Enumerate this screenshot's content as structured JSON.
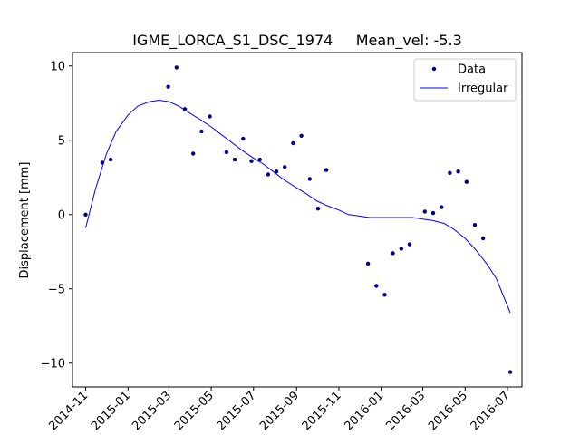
{
  "chart_data": {
    "type": "scatter",
    "title": "IGME_LORCA_S1_DSC_1974     Mean_vel: -5.3",
    "xlabel": "",
    "ylabel": "Displacement [mm]",
    "xlim": [
      "2014-10-13",
      "2016-07-22"
    ],
    "ylim": [
      -11.6,
      10.9
    ],
    "xticks": [
      "2014-11",
      "2015-01",
      "2015-03",
      "2015-05",
      "2015-07",
      "2015-09",
      "2015-11",
      "2016-01",
      "2016-03",
      "2016-05",
      "2016-07"
    ],
    "yticks": [
      10,
      5,
      0,
      -5,
      -10
    ],
    "grid": false,
    "legend": "top-right",
    "series": [
      {
        "name": "Data",
        "kind": "points",
        "color": "#00008b",
        "x": [
          "2014-11-01",
          "2014-11-25",
          "2014-12-07",
          "2015-02-28",
          "2015-03-12",
          "2015-03-24",
          "2015-04-05",
          "2015-04-17",
          "2015-04-29",
          "2015-05-23",
          "2015-06-04",
          "2015-06-16",
          "2015-06-28",
          "2015-07-10",
          "2015-07-22",
          "2015-08-03",
          "2015-08-15",
          "2015-08-27",
          "2015-09-08",
          "2015-09-20",
          "2015-10-02",
          "2015-10-14",
          "2015-12-13",
          "2015-12-25",
          "2016-01-06",
          "2016-01-18",
          "2016-01-30",
          "2016-02-11",
          "2016-03-04",
          "2016-03-16",
          "2016-03-28",
          "2016-04-09",
          "2016-04-21",
          "2016-05-03",
          "2016-05-15",
          "2016-05-27",
          "2016-07-05"
        ],
        "values": [
          0.0,
          3.5,
          3.7,
          8.6,
          9.9,
          7.1,
          4.1,
          5.6,
          6.6,
          4.2,
          3.7,
          5.1,
          3.6,
          3.7,
          2.7,
          2.9,
          3.2,
          4.8,
          5.3,
          2.4,
          0.4,
          3.0,
          -3.3,
          -4.8,
          -5.4,
          -2.6,
          -2.3,
          -2.0,
          0.2,
          0.1,
          0.5,
          2.8,
          2.9,
          2.2,
          -0.7,
          -1.6,
          -10.6
        ]
      },
      {
        "name": "Irregular",
        "kind": "line",
        "color": "#0000ff",
        "x": [
          "2014-11-01",
          "2014-11-15",
          "2014-12-01",
          "2014-12-15",
          "2015-01-01",
          "2015-01-15",
          "2015-02-01",
          "2015-02-15",
          "2015-03-01",
          "2015-03-15",
          "2015-04-01",
          "2015-04-15",
          "2015-05-01",
          "2015-05-15",
          "2015-06-01",
          "2015-06-15",
          "2015-07-01",
          "2015-07-15",
          "2015-08-01",
          "2015-08-15",
          "2015-09-01",
          "2015-09-15",
          "2015-10-01",
          "2015-10-15",
          "2015-11-01",
          "2015-11-15",
          "2015-12-01",
          "2015-12-15",
          "2016-01-01",
          "2016-01-15",
          "2016-02-01",
          "2016-02-15",
          "2016-03-01",
          "2016-03-15",
          "2016-04-01",
          "2016-04-15",
          "2016-05-01",
          "2016-05-15",
          "2016-06-01",
          "2016-06-15",
          "2016-07-05"
        ],
        "values": [
          -0.9,
          1.7,
          4.1,
          5.6,
          6.7,
          7.3,
          7.6,
          7.7,
          7.6,
          7.3,
          6.8,
          6.4,
          5.9,
          5.4,
          4.8,
          4.3,
          3.8,
          3.4,
          2.8,
          2.3,
          1.8,
          1.4,
          0.9,
          0.6,
          0.3,
          0.0,
          -0.1,
          -0.2,
          -0.2,
          -0.2,
          -0.2,
          -0.2,
          -0.3,
          -0.4,
          -0.6,
          -1.0,
          -1.6,
          -2.3,
          -3.3,
          -4.3,
          -6.6
        ]
      }
    ]
  }
}
